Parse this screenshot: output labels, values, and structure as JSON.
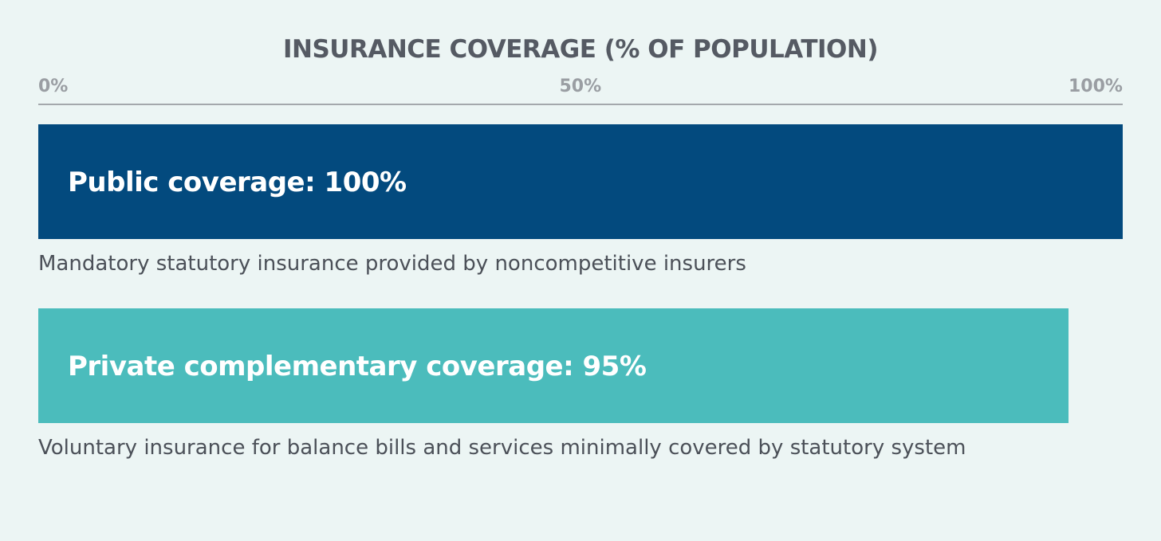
{
  "chart_data": {
    "type": "bar",
    "orientation": "horizontal",
    "title": "INSURANCE COVERAGE (% OF POPULATION)",
    "xlim": [
      0,
      100
    ],
    "ticks": [
      {
        "value": 0,
        "label": "0%"
      },
      {
        "value": 50,
        "label": "50%"
      },
      {
        "value": 100,
        "label": "100%"
      }
    ],
    "grid": false,
    "legend": "none",
    "bars": [
      {
        "label": "Public coverage: 100%",
        "value": 100,
        "color": "#034a7e",
        "description": "Mandatory statutory insurance provided by noncompetitive insurers"
      },
      {
        "label": "Private complementary coverage: 95%",
        "value": 95,
        "color": "#4bbcbc",
        "description": "Voluntary insurance for balance bills and services minimally covered by statutory system"
      }
    ]
  }
}
